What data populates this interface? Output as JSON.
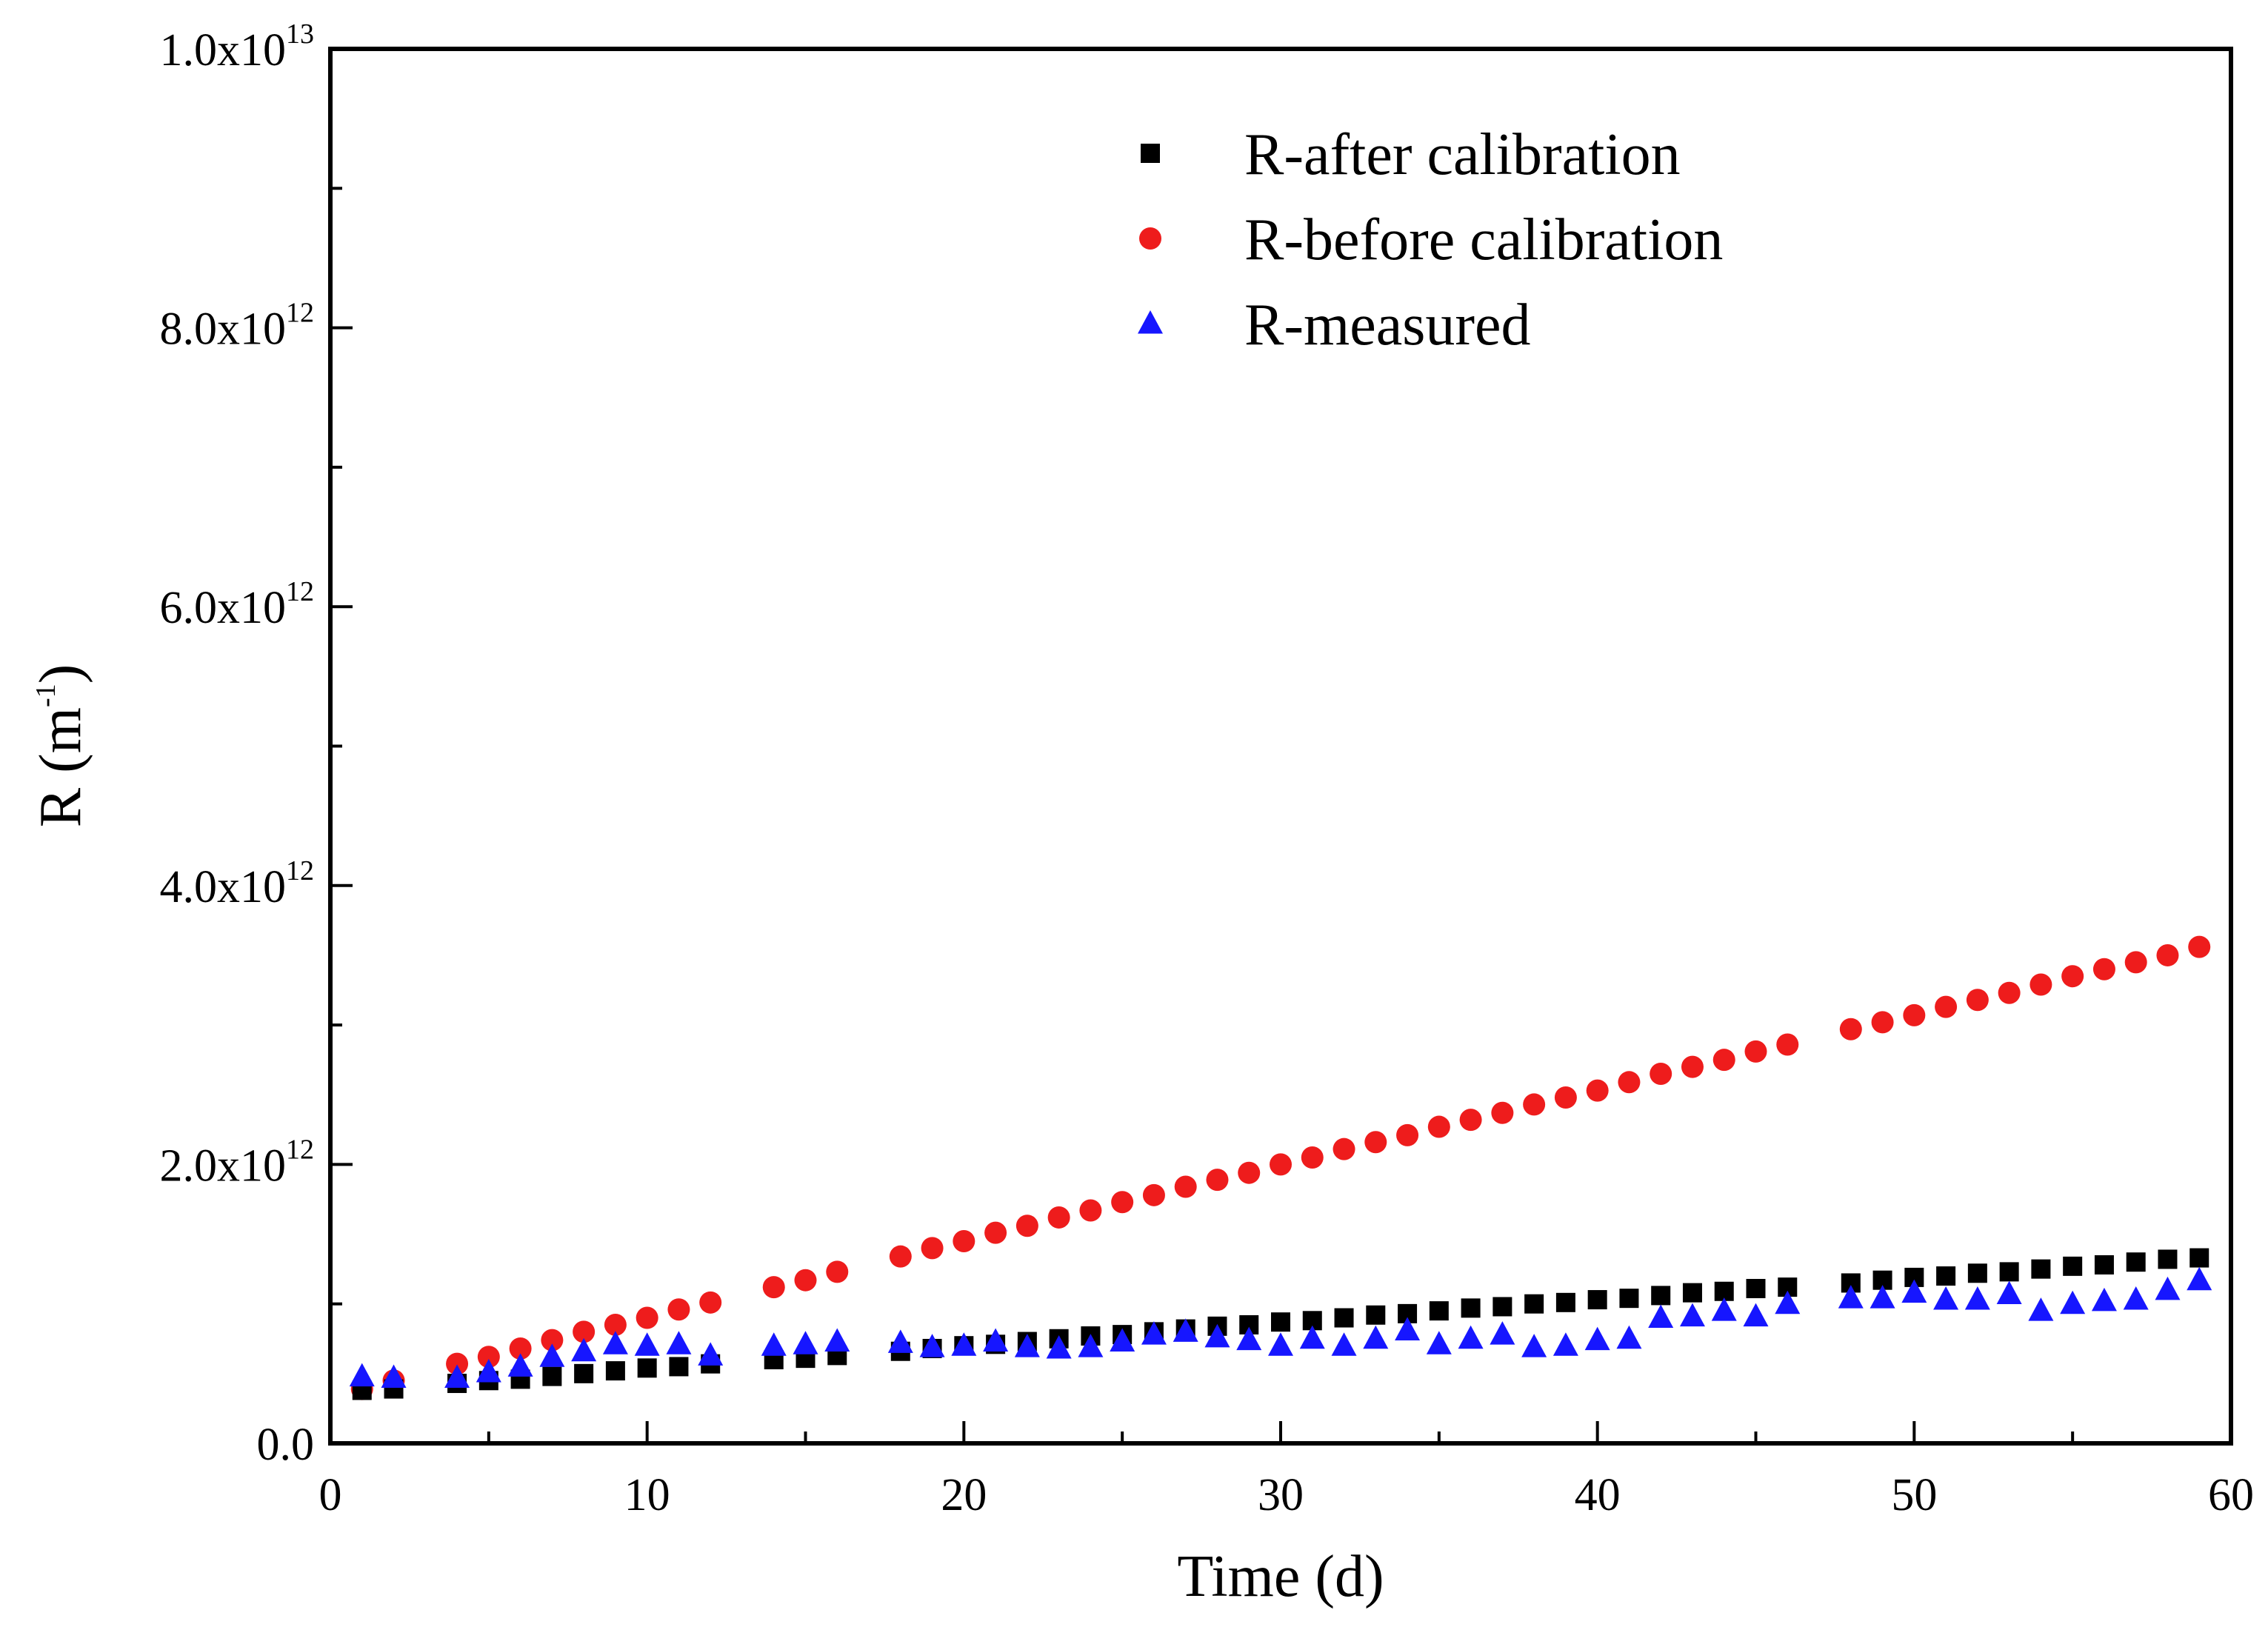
{
  "chart_data": {
    "type": "scatter",
    "title": "",
    "xlabel": "Time (d)",
    "ylabel": {
      "base": "R (m",
      "sup": "-1",
      "close": ")"
    },
    "xlim": [
      0,
      60
    ],
    "ylim": [
      0,
      10000000000000.0
    ],
    "x_ticks": [
      {
        "value": 0,
        "label": "0"
      },
      {
        "value": 10,
        "label": "10"
      },
      {
        "value": 20,
        "label": "20"
      },
      {
        "value": 30,
        "label": "30"
      },
      {
        "value": 40,
        "label": "40"
      },
      {
        "value": 50,
        "label": "50"
      },
      {
        "value": 60,
        "label": "60"
      }
    ],
    "y_ticks": [
      {
        "value": 0,
        "mantissa": "0.0",
        "exp": ""
      },
      {
        "value": 2000000000000.0,
        "mantissa": "2.0x10",
        "exp": "12"
      },
      {
        "value": 4000000000000.0,
        "mantissa": "4.0x10",
        "exp": "12"
      },
      {
        "value": 6000000000000.0,
        "mantissa": "6.0x10",
        "exp": "12"
      },
      {
        "value": 8000000000000.0,
        "mantissa": "8.0x10",
        "exp": "12"
      },
      {
        "value": 10000000000000.0,
        "mantissa": "1.0x10",
        "exp": "13"
      }
    ],
    "y_minor_ticks": [
      1000000000000.0,
      3000000000000.0,
      5000000000000.0,
      7000000000000.0,
      9000000000000.0
    ],
    "x_minor_ticks": [
      5,
      15,
      25,
      35,
      45,
      55
    ],
    "legend_position": "top-right",
    "grid": false,
    "series": [
      {
        "name": "R-after calibration",
        "marker": "square",
        "color": "#000000",
        "x": [
          1,
          2,
          4,
          5,
          6,
          7,
          8,
          9,
          10,
          11,
          12,
          14,
          15,
          16,
          18,
          19,
          20,
          21,
          22,
          23,
          24,
          25,
          26,
          27,
          28,
          29,
          30,
          31,
          32,
          33,
          34,
          35,
          36,
          37,
          38,
          39,
          40,
          41,
          42,
          43,
          44,
          45,
          46,
          48,
          49,
          50,
          51,
          52,
          53,
          54,
          55,
          56,
          57,
          58,
          59
        ],
        "y": [
          380000000000.0,
          390000000000.0,
          430000000000.0,
          450000000000.0,
          460000000000.0,
          480000000000.0,
          500000000000.0,
          520000000000.0,
          540000000000.0,
          550000000000.0,
          570000000000.0,
          600000000000.0,
          610000000000.0,
          630000000000.0,
          660000000000.0,
          680000000000.0,
          700000000000.0,
          710000000000.0,
          730000000000.0,
          750000000000.0,
          770000000000.0,
          780000000000.0,
          800000000000.0,
          820000000000.0,
          840000000000.0,
          850000000000.0,
          870000000000.0,
          880000000000.0,
          900000000000.0,
          920000000000.0,
          930000000000.0,
          950000000000.0,
          970000000000.0,
          980000000000.0,
          1000000000000.0,
          1010000000000.0,
          1030000000000.0,
          1040000000000.0,
          1060000000000.0,
          1080000000000.0,
          1090000000000.0,
          1110000000000.0,
          1120000000000.0,
          1150000000000.0,
          1170000000000.0,
          1190000000000.0,
          1200000000000.0,
          1220000000000.0,
          1230000000000.0,
          1250000000000.0,
          1270000000000.0,
          1280000000000.0,
          1300000000000.0,
          1320000000000.0,
          1330000000000.0
        ]
      },
      {
        "name": "R-before calibration",
        "marker": "circle",
        "color": "#ee1c1c",
        "x": [
          1,
          2,
          4,
          5,
          6,
          7,
          8,
          9,
          10,
          11,
          12,
          14,
          15,
          16,
          18,
          19,
          20,
          21,
          22,
          23,
          24,
          25,
          26,
          27,
          28,
          29,
          30,
          31,
          32,
          33,
          34,
          35,
          36,
          37,
          38,
          39,
          40,
          41,
          42,
          43,
          44,
          45,
          46,
          48,
          49,
          50,
          51,
          52,
          53,
          54,
          55,
          56,
          57,
          58,
          59
        ],
        "y": [
          390000000000.0,
          450000000000.0,
          570000000000.0,
          620000000000.0,
          680000000000.0,
          740000000000.0,
          800000000000.0,
          850000000000.0,
          900000000000.0,
          960000000000.0,
          1010000000000.0,
          1120000000000.0,
          1170000000000.0,
          1230000000000.0,
          1340000000000.0,
          1400000000000.0,
          1450000000000.0,
          1510000000000.0,
          1560000000000.0,
          1620000000000.0,
          1670000000000.0,
          1730000000000.0,
          1780000000000.0,
          1840000000000.0,
          1890000000000.0,
          1940000000000.0,
          2000000000000.0,
          2050000000000.0,
          2110000000000.0,
          2160000000000.0,
          2210000000000.0,
          2270000000000.0,
          2320000000000.0,
          2370000000000.0,
          2430000000000.0,
          2480000000000.0,
          2530000000000.0,
          2590000000000.0,
          2650000000000.0,
          2700000000000.0,
          2750000000000.0,
          2810000000000.0,
          2860000000000.0,
          2970000000000.0,
          3020000000000.0,
          3070000000000.0,
          3130000000000.0,
          3180000000000.0,
          3230000000000.0,
          3290000000000.0,
          3350000000000.0,
          3400000000000.0,
          3450000000000.0,
          3500000000000.0,
          3560000000000.0
        ]
      },
      {
        "name": "R-measured",
        "marker": "triangle",
        "color": "#1616ff",
        "x": [
          1,
          2,
          4,
          5,
          6,
          7,
          8,
          9,
          10,
          11,
          12,
          14,
          15,
          16,
          18,
          19,
          20,
          21,
          22,
          23,
          24,
          25,
          26,
          27,
          28,
          29,
          30,
          31,
          32,
          33,
          34,
          35,
          36,
          37,
          38,
          39,
          40,
          41,
          42,
          43,
          44,
          45,
          46,
          48,
          49,
          50,
          51,
          52,
          53,
          54,
          55,
          56,
          57,
          58,
          59
        ],
        "y": [
          480000000000.0,
          470000000000.0,
          470000000000.0,
          510000000000.0,
          550000000000.0,
          620000000000.0,
          660000000000.0,
          710000000000.0,
          700000000000.0,
          710000000000.0,
          630000000000.0,
          700000000000.0,
          710000000000.0,
          730000000000.0,
          720000000000.0,
          690000000000.0,
          700000000000.0,
          730000000000.0,
          690000000000.0,
          680000000000.0,
          690000000000.0,
          730000000000.0,
          780000000000.0,
          800000000000.0,
          760000000000.0,
          740000000000.0,
          700000000000.0,
          750000000000.0,
          700000000000.0,
          750000000000.0,
          810000000000.0,
          710000000000.0,
          750000000000.0,
          780000000000.0,
          690000000000.0,
          700000000000.0,
          740000000000.0,
          750000000000.0,
          900000000000.0,
          910000000000.0,
          950000000000.0,
          910000000000.0,
          1000000000000.0,
          1040000000000.0,
          1040000000000.0,
          1080000000000.0,
          1030000000000.0,
          1030000000000.0,
          1070000000000.0,
          950000000000.0,
          1000000000000.0,
          1020000000000.0,
          1030000000000.0,
          1100000000000.0,
          1170000000000.0
        ]
      }
    ]
  }
}
